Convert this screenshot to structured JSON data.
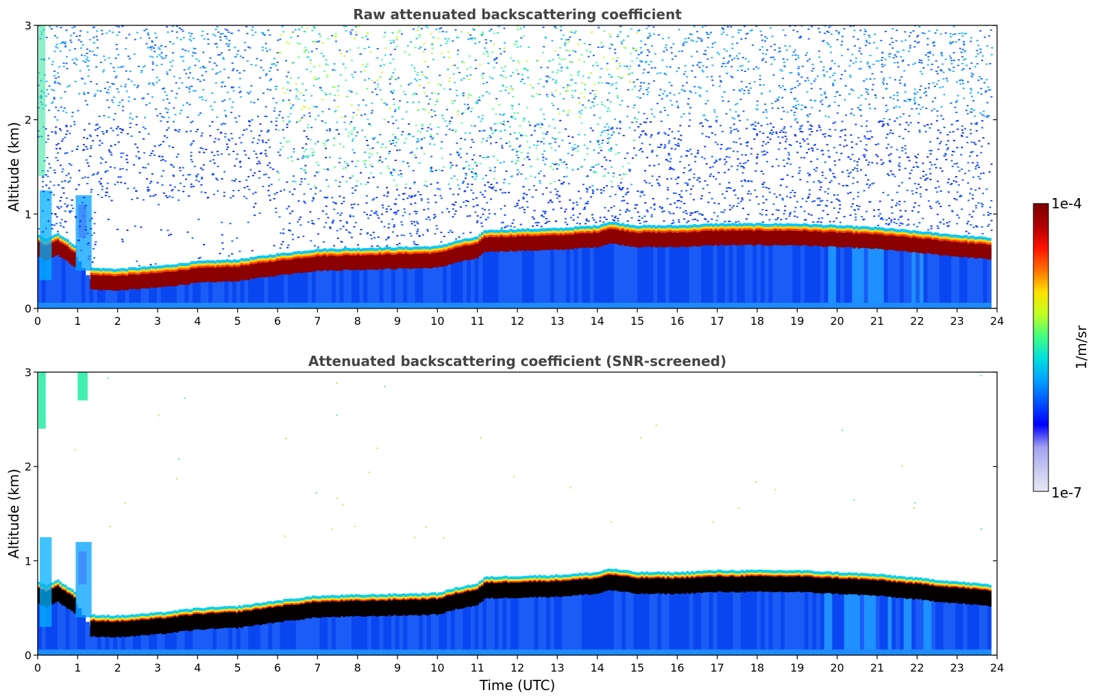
{
  "figure": {
    "xlabel": "Time (UTC)",
    "colorbar": {
      "max_label": "1e-4",
      "min_label": "1e-7",
      "unit_label": "1/m/sr",
      "min_value": 1e-07,
      "max_value": 0.0001,
      "scale": "log",
      "colormap": "jet",
      "colors": [
        "#e6e6f5",
        "#c8c8f0",
        "#a0a0f0",
        "#0000ff",
        "#0050ff",
        "#00a0ff",
        "#00e0e0",
        "#40ff80",
        "#c0ff20",
        "#ffe000",
        "#ff7000",
        "#ff1000",
        "#b00000",
        "#7a0000"
      ]
    }
  },
  "chart_data": [
    {
      "type": "heatmap",
      "title": "Raw attenuated backscattering coefficient",
      "xlabel": "",
      "ylabel": "Altitude (km)",
      "xlim": [
        0,
        24
      ],
      "ylim": [
        0,
        3
      ],
      "xticks": [
        "0",
        "1",
        "2",
        "3",
        "4",
        "5",
        "6",
        "7",
        "8",
        "9",
        "10",
        "11",
        "12",
        "13",
        "14",
        "15",
        "16",
        "17",
        "18",
        "19",
        "20",
        "21",
        "22",
        "23",
        "24"
      ],
      "yticks": [
        "0",
        "1",
        "2",
        "3"
      ],
      "layer_top_km": {
        "x": [
          0,
          0.2,
          0.5,
          1.0,
          1.3,
          2,
          3,
          4,
          5,
          6,
          7,
          8,
          9,
          10,
          10.5,
          11,
          11.2,
          12,
          13,
          14,
          14.3,
          15,
          16,
          17,
          18,
          19,
          20,
          21,
          22,
          23,
          23.8
        ],
        "y": [
          0.78,
          0.74,
          0.8,
          0.65,
          0.43,
          0.42,
          0.45,
          0.5,
          0.52,
          0.58,
          0.63,
          0.64,
          0.65,
          0.66,
          0.72,
          0.76,
          0.83,
          0.84,
          0.85,
          0.88,
          0.92,
          0.88,
          0.88,
          0.9,
          0.9,
          0.9,
          0.88,
          0.86,
          0.82,
          0.78,
          0.75
        ]
      },
      "screened": false
    },
    {
      "type": "heatmap",
      "title": "Attenuated backscattering coefficient (SNR-screened)",
      "xlabel": "Time (UTC)",
      "ylabel": "Altitude (km)",
      "xlim": [
        0,
        24
      ],
      "ylim": [
        0,
        3
      ],
      "xticks": [
        "0",
        "1",
        "2",
        "3",
        "4",
        "5",
        "6",
        "7",
        "8",
        "9",
        "10",
        "11",
        "12",
        "13",
        "14",
        "15",
        "16",
        "17",
        "18",
        "19",
        "20",
        "21",
        "22",
        "23",
        "24"
      ],
      "yticks": [
        "0",
        "1",
        "2",
        "3"
      ],
      "layer_top_km": {
        "x": [
          0,
          0.2,
          0.5,
          1.0,
          1.3,
          2,
          3,
          4,
          5,
          6,
          7,
          8,
          9,
          10,
          10.5,
          11,
          11.2,
          12,
          13,
          14,
          14.3,
          15,
          16,
          17,
          18,
          19,
          20,
          21,
          22,
          23,
          23.8
        ],
        "y": [
          0.78,
          0.74,
          0.8,
          0.65,
          0.43,
          0.42,
          0.45,
          0.5,
          0.52,
          0.58,
          0.63,
          0.64,
          0.65,
          0.66,
          0.72,
          0.76,
          0.83,
          0.84,
          0.85,
          0.88,
          0.92,
          0.88,
          0.88,
          0.9,
          0.9,
          0.9,
          0.88,
          0.86,
          0.82,
          0.78,
          0.75
        ]
      },
      "screened": true
    }
  ]
}
